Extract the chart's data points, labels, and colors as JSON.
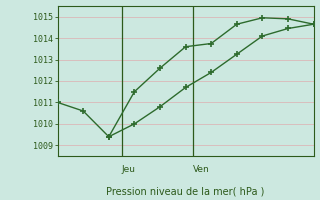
{
  "line1_x": [
    0,
    1,
    2,
    3,
    4,
    5,
    6,
    7,
    8,
    9,
    10
  ],
  "line1_y": [
    1011.0,
    1010.6,
    1009.4,
    1011.5,
    1012.6,
    1013.6,
    1013.75,
    1014.65,
    1014.95,
    1014.9,
    1014.65
  ],
  "line2_x": [
    2,
    3,
    4,
    5,
    6,
    7,
    8,
    9,
    10
  ],
  "line2_y": [
    1009.4,
    1010.0,
    1010.8,
    1011.7,
    1012.4,
    1013.25,
    1014.1,
    1014.45,
    1014.65
  ],
  "line_color": "#2d6b2d",
  "bg_color": "#cce8e0",
  "grid_color": "#dbb8b8",
  "axis_color": "#2d5a1b",
  "text_color": "#2d5a1b",
  "xlabel": "Pression niveau de la mer( hPa )",
  "ylim": [
    1008.5,
    1015.5
  ],
  "yticks": [
    1009,
    1010,
    1011,
    1012,
    1013,
    1014,
    1015
  ],
  "xlim": [
    0,
    10
  ],
  "vline1_x": 2.5,
  "vline2_x": 5.3,
  "vline_label1": "Jeu",
  "vline_label2": "Ven",
  "marker": "+",
  "markersize": 5,
  "linewidth": 1.0
}
